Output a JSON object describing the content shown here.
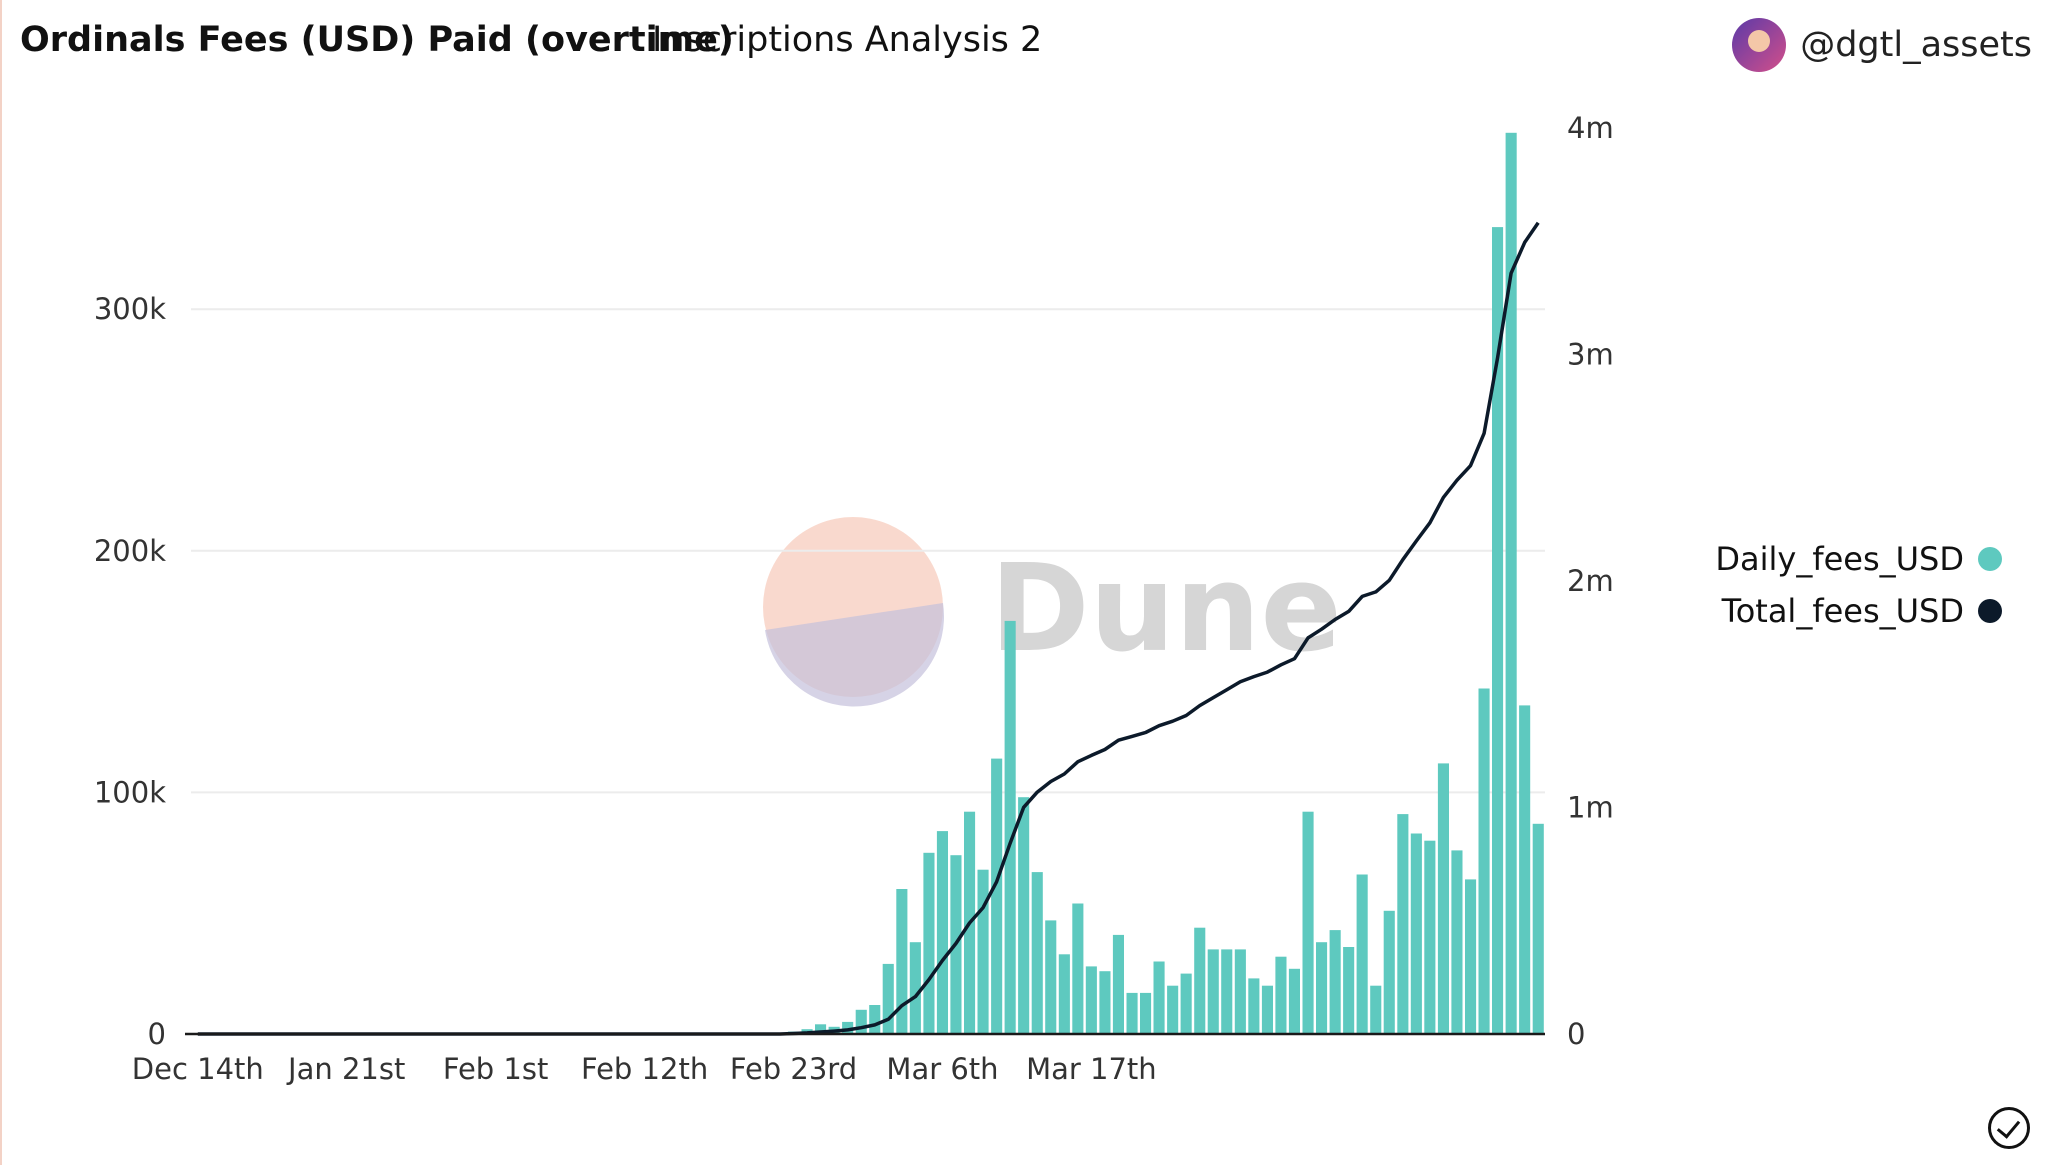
{
  "header": {
    "title": "Ordinals Fees (USD) Paid (overtime)",
    "subtitle": "Inscriptions Analysis 2",
    "author": "@dgtl_assets"
  },
  "watermark": {
    "text": "Dune"
  },
  "legend": {
    "items": [
      {
        "label": "Daily_fees_USD",
        "color": "#5ec9bf"
      },
      {
        "label": "Total_fees_USD",
        "color": "#0c1a2a"
      }
    ]
  },
  "chart_data": {
    "type": "bar",
    "title": "Ordinals Fees (USD) Paid (overtime)",
    "x_ticks": [
      "Dec 14th",
      "Jan 21st",
      "Feb 1st",
      "Feb 12th",
      "Feb 23rd",
      "Mar 6th",
      "Mar 17th"
    ],
    "y_left": {
      "ticks": [
        "0",
        "100k",
        "200k",
        "300k"
      ],
      "range": [
        0,
        375000
      ]
    },
    "y_right": {
      "ticks": [
        "0",
        "1m",
        "2m",
        "3m",
        "4m"
      ],
      "range": [
        0,
        4000000
      ]
    },
    "series": [
      {
        "name": "Daily_fees_USD",
        "type": "bar",
        "color": "#5ec9bf",
        "values": [
          0,
          0,
          0,
          0,
          0,
          0,
          0,
          0,
          0,
          0,
          0,
          0,
          0,
          0,
          0,
          0,
          0,
          0,
          0,
          0,
          0,
          0,
          0,
          0,
          0,
          0,
          0,
          0,
          0,
          0,
          0,
          0,
          0,
          0,
          0,
          0,
          0,
          0,
          0,
          0,
          0,
          0,
          0,
          0,
          1000,
          2000,
          4000,
          3000,
          5000,
          10000,
          12000,
          29000,
          60000,
          38000,
          75000,
          84000,
          74000,
          92000,
          68000,
          114000,
          171000,
          98000,
          67000,
          47000,
          33000,
          54000,
          28000,
          26000,
          41000,
          17000,
          17000,
          30000,
          20000,
          25000,
          44000,
          35000,
          35000,
          35000,
          23000,
          20000,
          32000,
          27000,
          92000,
          38000,
          43000,
          36000,
          66000,
          20000,
          51000,
          91000,
          83000,
          80000,
          112000,
          76000,
          64000,
          143000,
          334000,
          373000,
          136000,
          87000
        ]
      },
      {
        "name": "Total_fees_USD",
        "type": "line",
        "color": "#0c1a2a",
        "values": [
          0,
          0,
          0,
          0,
          0,
          0,
          0,
          0,
          0,
          0,
          0,
          0,
          0,
          0,
          0,
          0,
          0,
          0,
          0,
          0,
          0,
          0,
          0,
          0,
          0,
          0,
          0,
          0,
          0,
          0,
          0,
          0,
          0,
          0,
          0,
          0,
          0,
          0,
          0,
          0,
          0,
          0,
          0,
          0,
          2000,
          5000,
          9000,
          13000,
          18000,
          28000,
          40000,
          65000,
          125000,
          165000,
          240000,
          325000,
          400000,
          490000,
          558000,
          672000,
          843000,
          1001000,
          1068000,
          1115000,
          1148000,
          1202000,
          1230000,
          1256000,
          1297000,
          1314000,
          1331000,
          1361000,
          1381000,
          1406000,
          1450000,
          1485000,
          1520000,
          1555000,
          1578000,
          1598000,
          1630000,
          1657000,
          1749000,
          1787000,
          1830000,
          1866000,
          1932000,
          1952000,
          2003000,
          2094000,
          2177000,
          2257000,
          2369000,
          2445000,
          2509000,
          2652000,
          2986000,
          3359000,
          3495000,
          3582000
        ]
      }
    ]
  }
}
